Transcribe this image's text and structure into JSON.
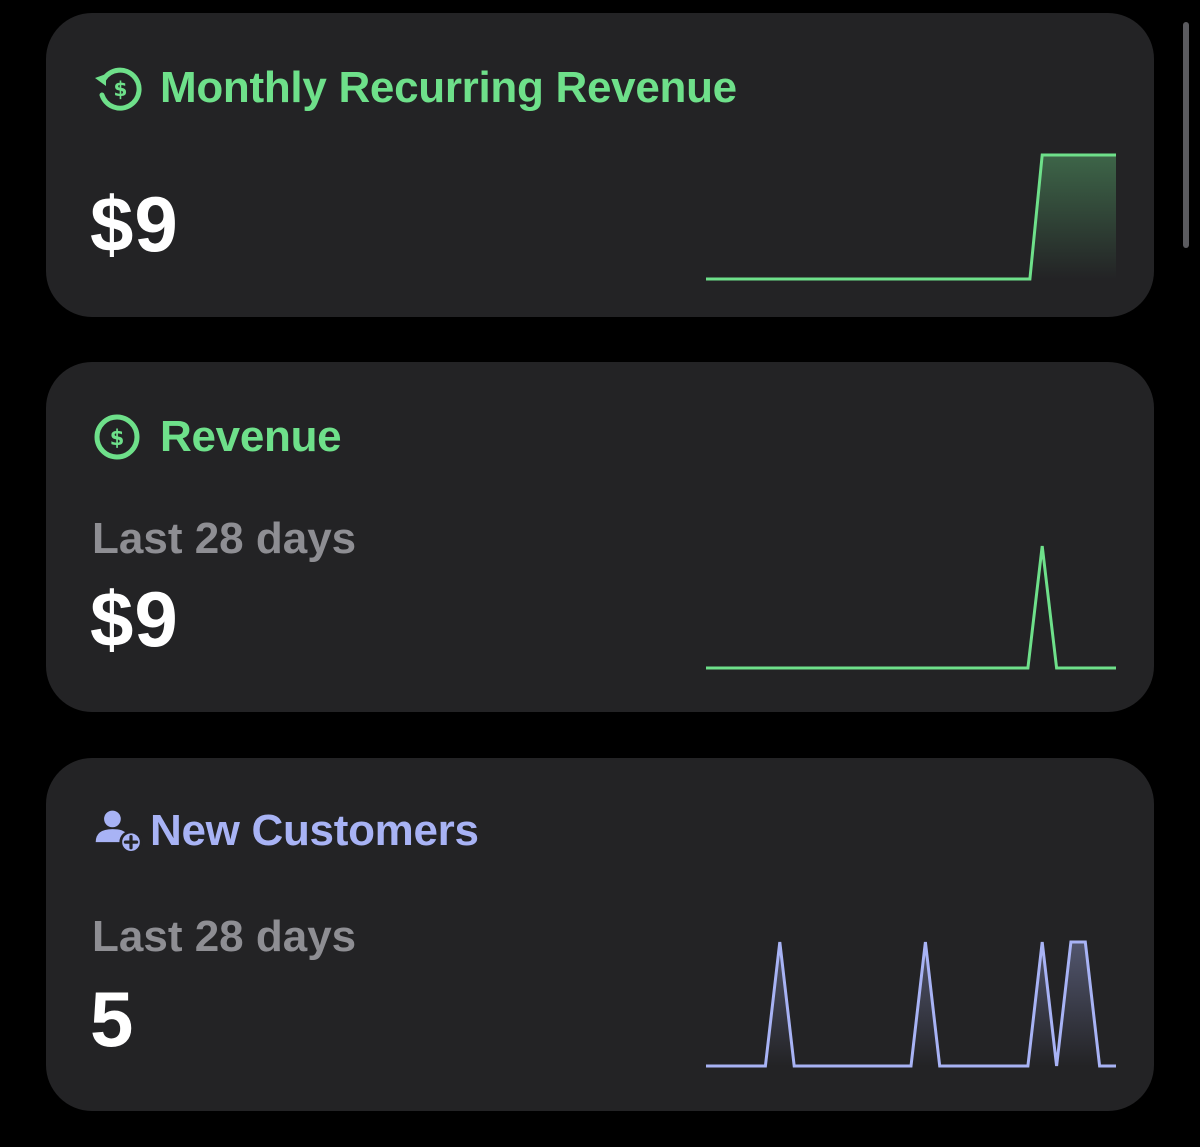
{
  "colors": {
    "background": "#000000",
    "card": "#232325",
    "green": "#6ee08a",
    "periwinkle": "#a8b3f5",
    "secondary_text": "#8e8e93",
    "value_text": "#ffffff"
  },
  "cards": [
    {
      "id": "mrr",
      "icon": "recurring-dollar-icon",
      "title": "Monthly Recurring Revenue",
      "value": "$9",
      "accent": "#6ee08a",
      "spark": {
        "type": "area-step",
        "points": [
          [
            0,
            0
          ],
          [
            0.79,
            0
          ],
          [
            0.82,
            1
          ],
          [
            1,
            1
          ]
        ]
      }
    },
    {
      "id": "revenue",
      "icon": "dollar-circle-icon",
      "title": "Revenue",
      "subtitle": "Last 28 days",
      "value": "$9",
      "accent": "#6ee08a",
      "spark": {
        "type": "line",
        "points": [
          [
            0,
            0
          ],
          [
            0.785,
            0
          ],
          [
            0.82,
            1
          ],
          [
            0.855,
            0
          ],
          [
            1,
            0
          ]
        ]
      }
    },
    {
      "id": "customers",
      "icon": "person-add-icon",
      "title": "New Customers",
      "subtitle": "Last 28 days",
      "value": "5",
      "accent": "#a8b3f5",
      "spark": {
        "type": "area-line",
        "points": [
          [
            0,
            0
          ],
          [
            0.145,
            0
          ],
          [
            0.18,
            1
          ],
          [
            0.215,
            0
          ],
          [
            0.5,
            0
          ],
          [
            0.535,
            1
          ],
          [
            0.57,
            0
          ],
          [
            0.785,
            0
          ],
          [
            0.82,
            1
          ],
          [
            0.855,
            0
          ],
          [
            0.89,
            1
          ],
          [
            0.925,
            1
          ],
          [
            0.96,
            0
          ],
          [
            1,
            0
          ]
        ]
      }
    }
  ]
}
